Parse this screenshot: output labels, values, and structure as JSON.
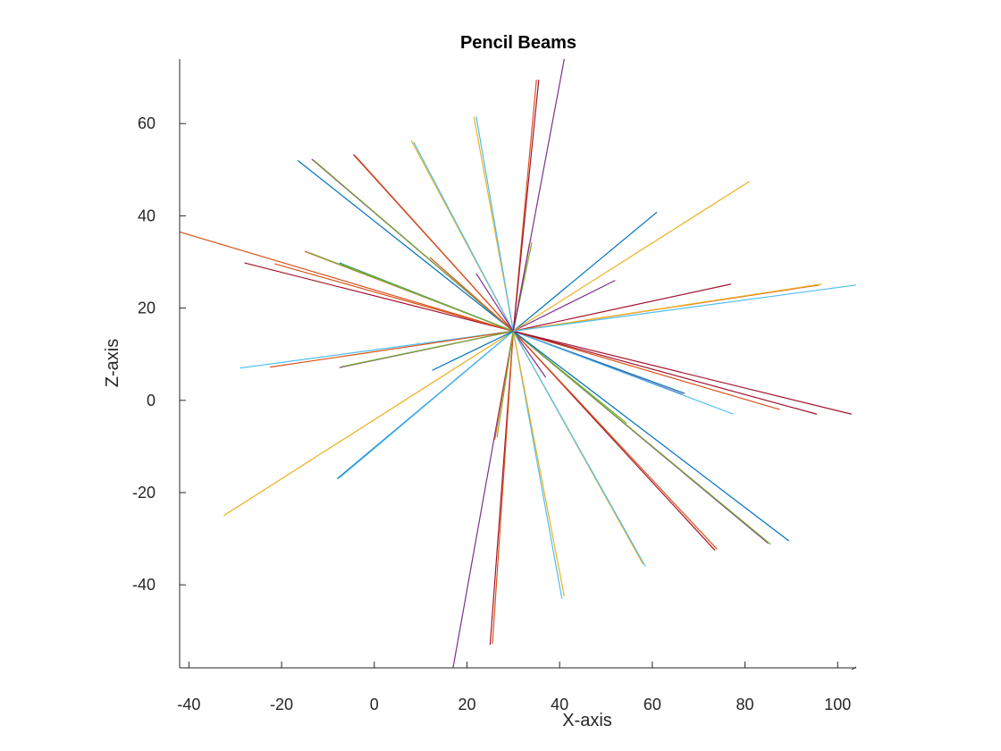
{
  "chart_data": {
    "type": "line",
    "title": "Pencil Beams",
    "xlabel": "X-axis",
    "ylabel": "Z-axis",
    "xlim": [
      -42,
      104
    ],
    "ylim": [
      -58,
      74
    ],
    "xticks": [
      -40,
      -20,
      0,
      20,
      40,
      60,
      80,
      100
    ],
    "yticks": [
      -40,
      -20,
      0,
      20,
      40,
      60
    ],
    "xtick_labels": [
      "-40",
      "-20",
      "0",
      "20",
      "40",
      "60",
      "80",
      "100"
    ],
    "ytick_labels": [
      "-40",
      "-20",
      "0",
      "20",
      "40",
      "60"
    ],
    "grid": false,
    "legend": "none",
    "origin": [
      30,
      15
    ],
    "colors": [
      "#0072BD",
      "#D95319",
      "#EDB120",
      "#7E2F8E",
      "#77AC30",
      "#4DBEEE",
      "#A2142F"
    ],
    "beams": [
      {
        "end": [
          -42,
          36.5
        ],
        "color": "#D95319"
      },
      {
        "end": [
          -28,
          29.8
        ],
        "color": "#A2142F"
      },
      {
        "end": [
          -29,
          7
        ],
        "color": "#4DBEEE"
      },
      {
        "end": [
          -22.5,
          7.2
        ],
        "color": "#D95319"
      },
      {
        "end": [
          -21.5,
          29.6
        ],
        "color": "#D95319"
      },
      {
        "end": [
          -15,
          32.3
        ],
        "color": "#D95319"
      },
      {
        "end": [
          -14,
          32
        ],
        "color": "#77AC30"
      },
      {
        "end": [
          -32.5,
          -25
        ],
        "color": "#EDB120"
      },
      {
        "end": [
          -8,
          -17
        ],
        "color": "#0072BD"
      },
      {
        "end": [
          -7.5,
          -16.8
        ],
        "color": "#4DBEEE"
      },
      {
        "end": [
          -7.5,
          7.1
        ],
        "color": "#7E2F8E"
      },
      {
        "end": [
          -7,
          7.3
        ],
        "color": "#77AC30"
      },
      {
        "end": [
          -7.5,
          29.8
        ],
        "color": "#0072BD"
      },
      {
        "end": [
          -7,
          29.5
        ],
        "color": "#77AC30"
      },
      {
        "end": [
          -16.5,
          52
        ],
        "color": "#0072BD"
      },
      {
        "end": [
          -13.5,
          52.3
        ],
        "color": "#7E2F8E"
      },
      {
        "end": [
          -13,
          52
        ],
        "color": "#77AC30"
      },
      {
        "end": [
          -4.5,
          53.3
        ],
        "color": "#A2142F"
      },
      {
        "end": [
          -4,
          52.9
        ],
        "color": "#D95319"
      },
      {
        "end": [
          8,
          56.3
        ],
        "color": "#EDB120"
      },
      {
        "end": [
          8.5,
          56
        ],
        "color": "#4DBEEE"
      },
      {
        "end": [
          12,
          31
        ],
        "color": "#D95319"
      },
      {
        "end": [
          12.5,
          6.5
        ],
        "color": "#0072BD"
      },
      {
        "end": [
          21.5,
          61.5
        ],
        "color": "#EDB120"
      },
      {
        "end": [
          22,
          61.5
        ],
        "color": "#4DBEEE"
      },
      {
        "end": [
          22,
          27.5
        ],
        "color": "#7E2F8E"
      },
      {
        "end": [
          17,
          -58
        ],
        "color": "#7E2F8E"
      },
      {
        "end": [
          25,
          -53
        ],
        "color": "#A2142F"
      },
      {
        "end": [
          25.5,
          -52.8
        ],
        "color": "#D95319"
      },
      {
        "end": [
          26,
          -8.5
        ],
        "color": "#D95319"
      },
      {
        "end": [
          26.5,
          -8
        ],
        "color": "#77AC30"
      },
      {
        "end": [
          33.5,
          34
        ],
        "color": "#D95319"
      },
      {
        "end": [
          34,
          34.2
        ],
        "color": "#77AC30"
      },
      {
        "end": [
          35,
          69.5
        ],
        "color": "#D95319"
      },
      {
        "end": [
          35.5,
          69.5
        ],
        "color": "#A2142F"
      },
      {
        "end": [
          41,
          74
        ],
        "color": "#7E2F8E"
      },
      {
        "end": [
          37,
          5
        ],
        "color": "#7E2F8E"
      },
      {
        "end": [
          40.5,
          -43
        ],
        "color": "#4DBEEE"
      },
      {
        "end": [
          41,
          -42.5
        ],
        "color": "#EDB120"
      },
      {
        "end": [
          52,
          26
        ],
        "color": "#7E2F8E"
      },
      {
        "end": [
          54.5,
          -5
        ],
        "color": "#77AC30"
      },
      {
        "end": [
          58,
          -35.5
        ],
        "color": "#EDB120"
      },
      {
        "end": [
          58.5,
          -36
        ],
        "color": "#4DBEEE"
      },
      {
        "end": [
          61,
          40.8
        ],
        "color": "#0072BD"
      },
      {
        "end": [
          67,
          1.5
        ],
        "color": "#0072BD"
      },
      {
        "end": [
          66.5,
          1.3
        ],
        "color": "#7E2F8E"
      },
      {
        "end": [
          73.5,
          -32.5
        ],
        "color": "#A2142F"
      },
      {
        "end": [
          74,
          -32.3
        ],
        "color": "#D95319"
      },
      {
        "end": [
          77,
          25.2
        ],
        "color": "#A2142F"
      },
      {
        "end": [
          77.5,
          -3
        ],
        "color": "#4DBEEE"
      },
      {
        "end": [
          81,
          47.5
        ],
        "color": "#EDB120"
      },
      {
        "end": [
          85,
          -31
        ],
        "color": "#7E2F8E"
      },
      {
        "end": [
          85.5,
          -31.2
        ],
        "color": "#77AC30"
      },
      {
        "end": [
          87.5,
          -2
        ],
        "color": "#D95319"
      },
      {
        "end": [
          89.5,
          -30.5
        ],
        "color": "#0072BD"
      },
      {
        "end": [
          95.5,
          -3
        ],
        "color": "#A2142F"
      },
      {
        "end": [
          96,
          25
        ],
        "color": "#D95319"
      },
      {
        "end": [
          96.5,
          25.2
        ],
        "color": "#EDB120"
      },
      {
        "end": [
          103,
          -3
        ],
        "color": "#A2142F"
      },
      {
        "end": [
          104,
          25
        ],
        "color": "#4DBEEE"
      }
    ]
  }
}
